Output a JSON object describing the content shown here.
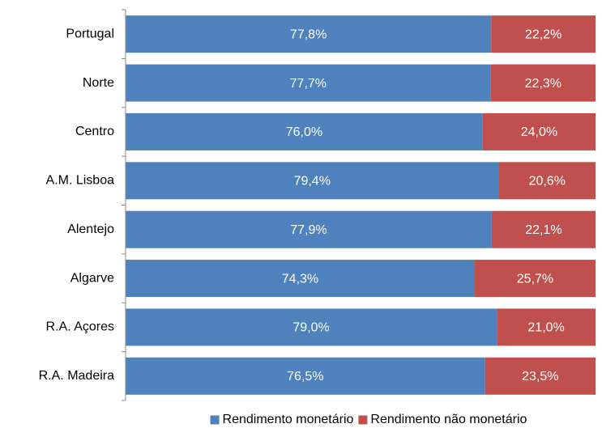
{
  "chart_data": {
    "type": "stacked_barh",
    "categories": [
      "Portugal",
      "Norte",
      "Centro",
      "A.M. Lisboa",
      "Alentejo",
      "Algarve",
      "R.A. Açores",
      "R.A. Madeira"
    ],
    "series": [
      {
        "name": "Rendimento monetário",
        "color": "#4f81bd",
        "values": [
          77.8,
          77.7,
          76.0,
          79.4,
          77.9,
          74.3,
          79.0,
          76.5
        ],
        "value_labels": [
          "77,8%",
          "77,7%",
          "76,0%",
          "79,4%",
          "77,9%",
          "74,3%",
          "79,0%",
          "76,5%"
        ]
      },
      {
        "name": "Rendimento não monetário",
        "color": "#c0504d",
        "values": [
          22.2,
          22.3,
          24.0,
          20.6,
          22.1,
          25.7,
          21.0,
          23.5
        ],
        "value_labels": [
          "22,2%",
          "22,3%",
          "24,0%",
          "20,6%",
          "22,1%",
          "25,7%",
          "21,0%",
          "23,5%"
        ]
      }
    ],
    "xlim": [
      0,
      100
    ],
    "legend": "bottom"
  }
}
